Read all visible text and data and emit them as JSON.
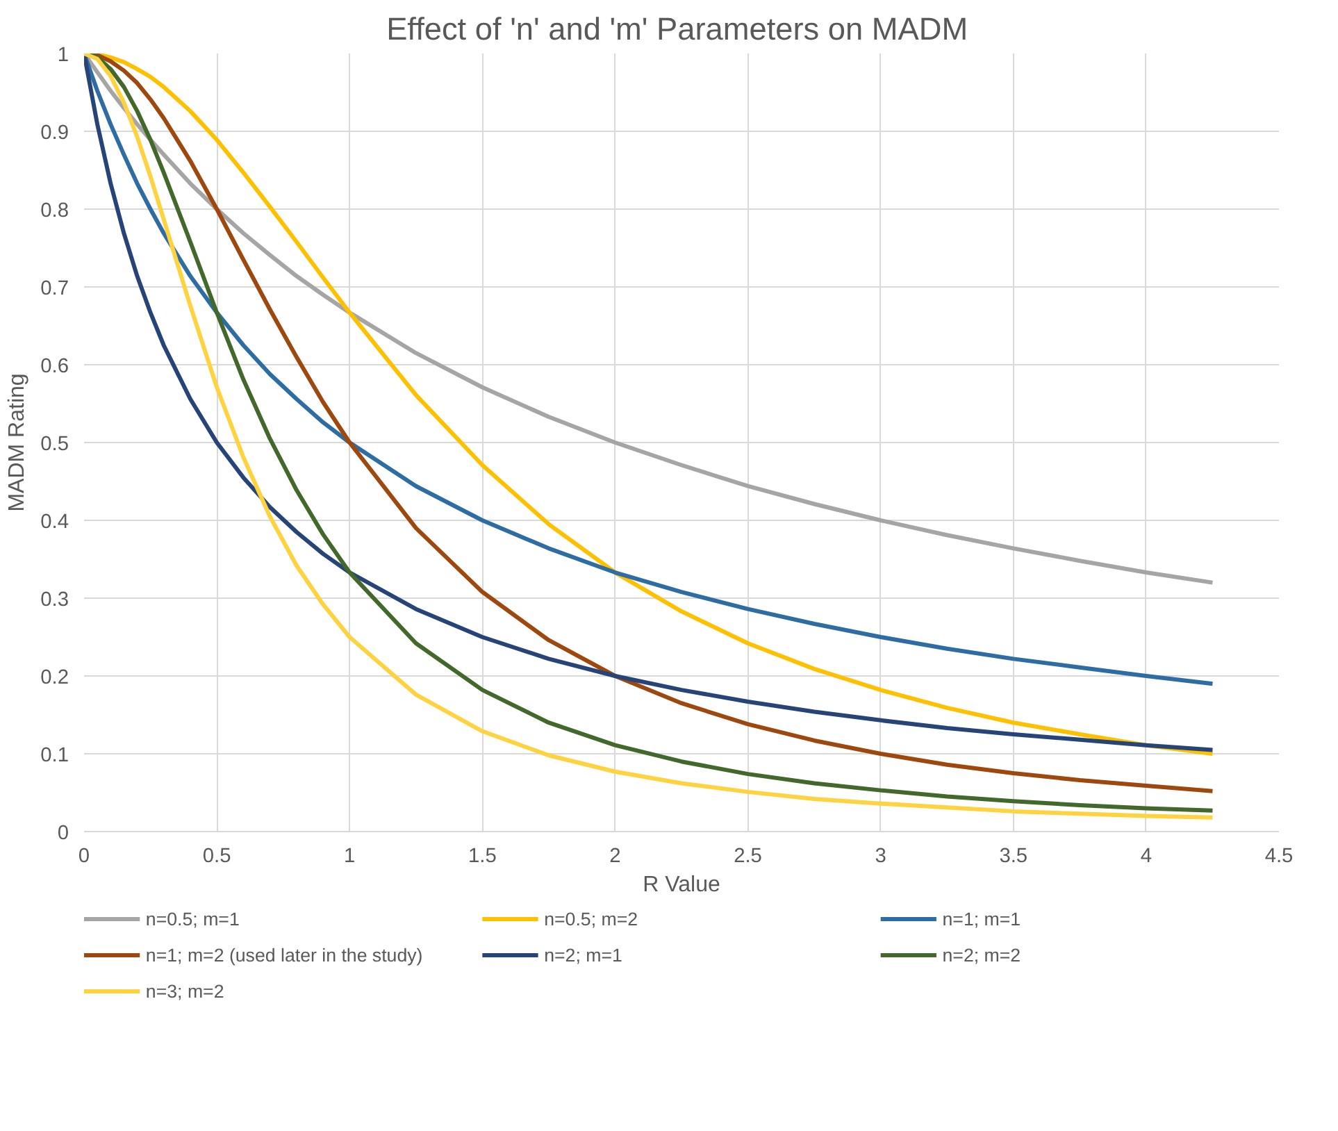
{
  "chart_data": {
    "type": "line",
    "title": "Effect of  'n' and 'm' Parameters on MADM",
    "xlabel": "R Value",
    "ylabel": "MADM Rating",
    "x": [
      0,
      0.05,
      0.1,
      0.15,
      0.2,
      0.25,
      0.3,
      0.4,
      0.5,
      0.6,
      0.7,
      0.8,
      0.9,
      1,
      1.25,
      1.5,
      1.75,
      2,
      2.25,
      2.5,
      2.75,
      3,
      3.25,
      3.5,
      3.75,
      4,
      4.25
    ],
    "series": [
      {
        "name": "n=0.5; m=1",
        "color": "#a5a5a5",
        "values": [
          1,
          0.976,
          0.952,
          0.93,
          0.909,
          0.889,
          0.87,
          0.833,
          0.8,
          0.769,
          0.741,
          0.714,
          0.69,
          0.667,
          0.615,
          0.571,
          0.533,
          0.5,
          0.471,
          0.444,
          0.421,
          0.4,
          0.381,
          0.364,
          0.348,
          0.333,
          0.32
        ]
      },
      {
        "name": "n=0.5; m=2",
        "color": "#ffc000",
        "values": [
          1,
          0.999,
          0.995,
          0.989,
          0.98,
          0.97,
          0.957,
          0.926,
          0.889,
          0.847,
          0.803,
          0.758,
          0.712,
          0.667,
          0.561,
          0.471,
          0.395,
          0.333,
          0.283,
          0.242,
          0.209,
          0.182,
          0.159,
          0.14,
          0.125,
          0.111,
          0.1
        ]
      },
      {
        "name": "n=1; m=1",
        "color": "#2e6da4",
        "values": [
          1,
          0.952,
          0.909,
          0.87,
          0.833,
          0.8,
          0.769,
          0.714,
          0.667,
          0.625,
          0.588,
          0.556,
          0.526,
          0.5,
          0.444,
          0.4,
          0.364,
          0.333,
          0.308,
          0.286,
          0.267,
          0.25,
          0.235,
          0.222,
          0.211,
          0.2,
          0.19
        ]
      },
      {
        "name": "n=1; m=2 (used later in the study)",
        "color": "#9e480e",
        "values": [
          1,
          0.998,
          0.99,
          0.978,
          0.962,
          0.941,
          0.917,
          0.862,
          0.8,
          0.735,
          0.671,
          0.61,
          0.552,
          0.5,
          0.39,
          0.308,
          0.246,
          0.2,
          0.165,
          0.138,
          0.117,
          0.1,
          0.086,
          0.075,
          0.066,
          0.059,
          0.052
        ]
      },
      {
        "name": "n=2; m=1",
        "color": "#264478",
        "values": [
          1,
          0.909,
          0.833,
          0.769,
          0.714,
          0.667,
          0.625,
          0.556,
          0.5,
          0.455,
          0.417,
          0.385,
          0.357,
          0.333,
          0.286,
          0.25,
          0.222,
          0.2,
          0.182,
          0.167,
          0.154,
          0.143,
          0.133,
          0.125,
          0.118,
          0.111,
          0.105
        ]
      },
      {
        "name": "n=2; m=2",
        "color": "#43682b",
        "values": [
          1,
          0.995,
          0.98,
          0.957,
          0.926,
          0.889,
          0.847,
          0.758,
          0.667,
          0.581,
          0.505,
          0.439,
          0.382,
          0.333,
          0.242,
          0.182,
          0.14,
          0.111,
          0.09,
          0.074,
          0.062,
          0.053,
          0.045,
          0.039,
          0.034,
          0.03,
          0.027
        ]
      },
      {
        "name": "n=3; m=2",
        "color": "#ffd23f",
        "values": [
          1,
          0.993,
          0.971,
          0.937,
          0.893,
          0.842,
          0.787,
          0.676,
          0.571,
          0.481,
          0.405,
          0.342,
          0.292,
          0.25,
          0.176,
          0.129,
          0.098,
          0.077,
          0.062,
          0.051,
          0.042,
          0.036,
          0.031,
          0.026,
          0.023,
          0.02,
          0.018
        ]
      }
    ],
    "xlim": [
      0,
      4.5
    ],
    "xticks": [
      0,
      0.5,
      1,
      1.5,
      2,
      2.5,
      3,
      3.5,
      4,
      4.5
    ],
    "ylim": [
      0,
      1
    ],
    "yticks": [
      0,
      0.1,
      0.2,
      0.3,
      0.4,
      0.5,
      0.6,
      0.7,
      0.8,
      0.9,
      1
    ],
    "grid": true,
    "legend": "bottom",
    "marker": "none",
    "line_style": "solid"
  }
}
